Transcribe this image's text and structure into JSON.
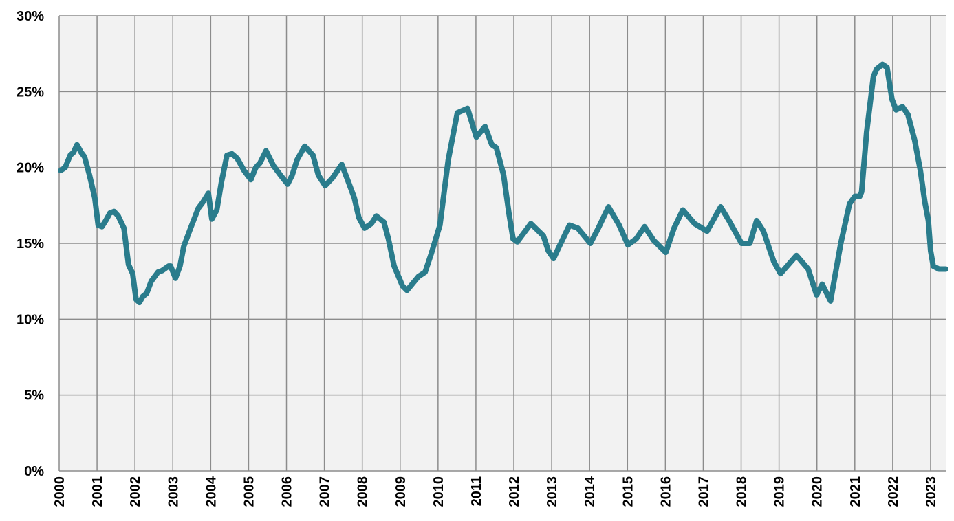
{
  "chart_data": {
    "type": "line",
    "x": [
      2000.04,
      2000.16,
      2000.29,
      2000.38,
      2000.47,
      2000.58,
      2000.67,
      2000.8,
      2000.94,
      2001.03,
      2001.13,
      2001.23,
      2001.34,
      2001.45,
      2001.56,
      2001.71,
      2001.83,
      2001.94,
      2002.03,
      2002.12,
      2002.21,
      2002.31,
      2002.43,
      2002.61,
      2002.72,
      2002.89,
      2002.94,
      2003.07,
      2003.19,
      2003.29,
      2003.47,
      2003.67,
      2003.79,
      2003.94,
      2004.03,
      2004.16,
      2004.28,
      2004.43,
      2004.56,
      2004.7,
      2004.88,
      2005.06,
      2005.19,
      2005.3,
      2005.46,
      2005.66,
      2005.84,
      2006.03,
      2006.15,
      2006.28,
      2006.48,
      2006.7,
      2006.84,
      2007.02,
      2007.21,
      2007.46,
      2007.64,
      2007.79,
      2007.91,
      2008.06,
      2008.24,
      2008.37,
      2008.57,
      2008.69,
      2008.84,
      2009.06,
      2009.18,
      2009.48,
      2009.66,
      2009.82,
      2010.05,
      2010.27,
      2010.51,
      2010.78,
      2011.01,
      2011.24,
      2011.42,
      2011.54,
      2011.73,
      2011.87,
      2011.98,
      2012.09,
      2012.45,
      2012.78,
      2012.91,
      2013.05,
      2013.2,
      2013.47,
      2013.69,
      2014.02,
      2014.23,
      2014.5,
      2014.78,
      2015.01,
      2015.23,
      2015.45,
      2015.69,
      2016.01,
      2016.23,
      2016.46,
      2016.77,
      2017.1,
      2017.46,
      2017.68,
      2018.01,
      2018.23,
      2018.41,
      2018.59,
      2018.86,
      2019.04,
      2019.46,
      2019.77,
      2019.99,
      2020.14,
      2020.36,
      2020.63,
      2020.86,
      2021.0,
      2021.13,
      2021.18,
      2021.31,
      2021.49,
      2021.58,
      2021.73,
      2021.85,
      2021.98,
      2022.09,
      2022.26,
      2022.4,
      2022.58,
      2022.73,
      2022.85,
      2022.94,
      2023.0,
      2023.07,
      2023.22,
      2023.4
    ],
    "series": [
      {
        "color": "#2a7c8c",
        "values": [
          19.8,
          20.0,
          20.8,
          21.0,
          21.5,
          21.0,
          20.7,
          19.5,
          18.0,
          16.2,
          16.1,
          16.5,
          17.0,
          17.1,
          16.8,
          16.0,
          13.6,
          13.0,
          11.3,
          11.1,
          11.5,
          11.7,
          12.5,
          13.1,
          13.2,
          13.5,
          13.5,
          12.7,
          13.5,
          14.8,
          16.0,
          17.3,
          17.7,
          18.3,
          16.6,
          17.2,
          19.0,
          20.8,
          20.9,
          20.6,
          19.8,
          19.2,
          20.0,
          20.3,
          21.1,
          20.1,
          19.5,
          18.9,
          19.5,
          20.5,
          21.4,
          20.8,
          19.5,
          18.8,
          19.3,
          20.2,
          19.0,
          18.0,
          16.7,
          16.0,
          16.3,
          16.8,
          16.4,
          15.3,
          13.5,
          12.2,
          11.9,
          12.8,
          13.1,
          14.3,
          16.2,
          20.5,
          23.6,
          23.9,
          22.0,
          22.7,
          21.5,
          21.3,
          19.5,
          17.0,
          15.3,
          15.1,
          16.3,
          15.5,
          14.5,
          14.0,
          14.8,
          16.2,
          16.0,
          15.0,
          16.0,
          17.4,
          16.2,
          14.9,
          15.3,
          16.1,
          15.2,
          14.4,
          16.0,
          17.2,
          16.3,
          15.8,
          17.4,
          16.5,
          15.0,
          15.0,
          16.5,
          15.8,
          13.8,
          13.0,
          14.2,
          13.3,
          11.6,
          12.3,
          11.2,
          15.0,
          17.6,
          18.1,
          18.1,
          18.4,
          22.3,
          26.0,
          26.5,
          26.8,
          26.6,
          24.5,
          23.8,
          24.0,
          23.5,
          21.8,
          19.8,
          17.7,
          16.5,
          14.5,
          13.5,
          13.3,
          13.3
        ]
      }
    ],
    "xlim": [
      2000,
      2023.4
    ],
    "xticks": [
      2000,
      2001,
      2002,
      2003,
      2004,
      2005,
      2006,
      2007,
      2008,
      2009,
      2010,
      2011,
      2012,
      2013,
      2014,
      2015,
      2016,
      2017,
      2018,
      2019,
      2020,
      2021,
      2022,
      2023
    ],
    "ylim": [
      0,
      30
    ],
    "yticks": [
      {
        "value": 0,
        "label": "0%"
      },
      {
        "value": 5,
        "label": "5%"
      },
      {
        "value": 10,
        "label": "10%"
      },
      {
        "value": 15,
        "label": "15%"
      },
      {
        "value": 20,
        "label": "20%"
      },
      {
        "value": 25,
        "label": "25%"
      },
      {
        "value": 30,
        "label": "30%"
      }
    ],
    "grid": true
  }
}
